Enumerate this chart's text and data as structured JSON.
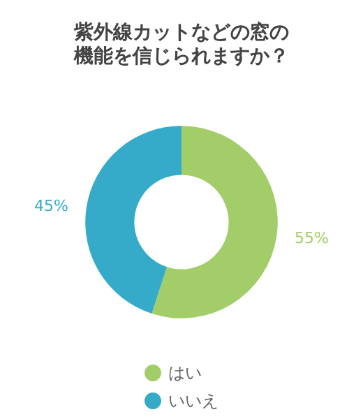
{
  "chart_data": {
    "type": "donut",
    "title": "紫外線カットなどの窓の機能を信じられますか？",
    "categories": [
      "はい",
      "いいえ"
    ],
    "values": [
      55,
      45
    ],
    "value_labels": [
      "55%",
      "45%"
    ],
    "colors": [
      "#a3cd68",
      "#35abc9"
    ],
    "legend": "bottom"
  }
}
